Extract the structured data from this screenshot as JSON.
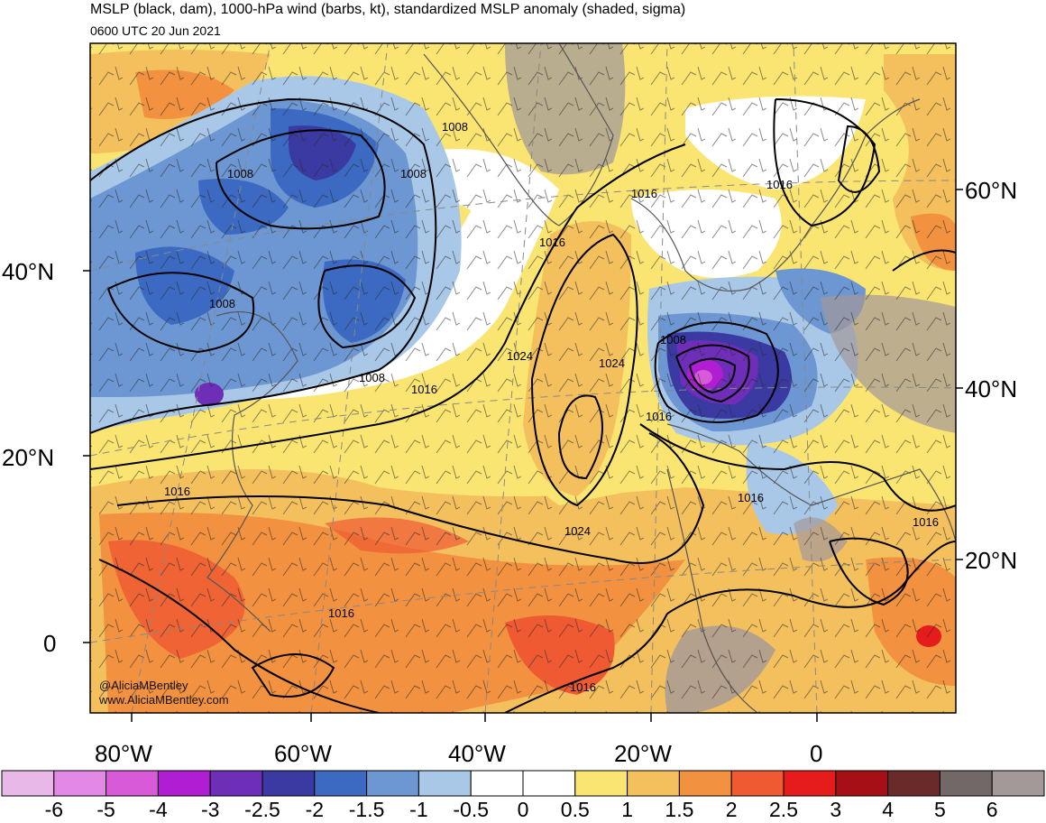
{
  "header": {
    "title": "MSLP (black, dam), 1000-hPa wind (barbs, kt), standardized MSLP anomaly (shaded, sigma)",
    "valid_time": "0600 UTC 20 Jun 2021"
  },
  "credits": {
    "handle": "@AliciaMBentley",
    "website": "www.AliciaMBentley.com"
  },
  "axes": {
    "lat_left": [
      "40°N",
      "20°N",
      "0"
    ],
    "lat_right": [
      "60°N",
      "40°N",
      "20°N"
    ],
    "lon_bottom": [
      "80°W",
      "60°W",
      "40°W",
      "20°W",
      "0"
    ]
  },
  "isobar_labels": [
    "1008",
    "1008",
    "1008",
    "1008",
    "1008",
    "1008",
    "1016",
    "1016",
    "1016",
    "1016",
    "1016",
    "1016",
    "1016",
    "1016",
    "1016",
    "1016",
    "1024",
    "1024",
    "1024"
  ],
  "colorbar": {
    "labels": [
      "-6",
      "-5",
      "-4",
      "-3",
      "-2.5",
      "-2",
      "-1.5",
      "-1",
      "-0.5",
      "0",
      "0.5",
      "1",
      "1.5",
      "2",
      "2.5",
      "3",
      "4",
      "5",
      "6"
    ],
    "colors": [
      "#e8b8e8",
      "#e488e6",
      "#d85ad8",
      "#b01ed4",
      "#6e2eb8",
      "#3a3aa2",
      "#3c6ac2",
      "#6d97d2",
      "#a9c8e8",
      "#ffffff",
      "#ffffff",
      "#fbe572",
      "#f4c05e",
      "#f2913f",
      "#f05a33",
      "#e61b1b",
      "#a50f15",
      "#6b2a2a",
      "#736868",
      "#a39999"
    ]
  }
}
